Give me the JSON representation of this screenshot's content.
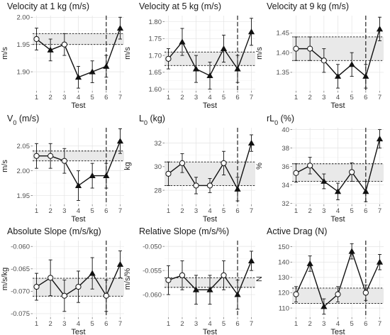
{
  "chart_data": [
    {
      "type": "line",
      "title": "Velocity at 1 kg (m/s)",
      "xlabel": "Test",
      "ylabel": "m/s",
      "x": [
        1,
        2,
        3,
        4,
        5,
        6,
        7
      ],
      "values": [
        1.96,
        1.94,
        1.95,
        1.89,
        1.9,
        1.91,
        1.98
      ],
      "errors": [
        0.02,
        0.02,
        0.02,
        0.02,
        0.02,
        0.02,
        0.02
      ],
      "markers": [
        "open-circle",
        "filled-triangle",
        "open-circle",
        "filled-triangle",
        "filled-triangle",
        "filled-triangle",
        "filled-triangle"
      ],
      "band": [
        1.95,
        1.97
      ],
      "vline_x": 6,
      "ylim": [
        1.865,
        2.003
      ],
      "yticks": [
        "1.90",
        "1.95",
        "2.00"
      ]
    },
    {
      "type": "line",
      "title": "Velocity at 5 kg (m/s)",
      "xlabel": "Test",
      "ylabel": "m/s",
      "x": [
        1,
        2,
        3,
        4,
        5,
        6,
        7
      ],
      "values": [
        1.69,
        1.74,
        1.66,
        1.64,
        1.72,
        1.66,
        1.77
      ],
      "errors": [
        0.03,
        0.04,
        0.04,
        0.04,
        0.04,
        0.04,
        0.04
      ],
      "markers": [
        "open-circle",
        "filled-triangle",
        "filled-triangle",
        "filled-triangle",
        "filled-triangle",
        "filled-triangle",
        "filled-triangle"
      ],
      "band": [
        1.67,
        1.71
      ],
      "vline_x": 6,
      "ylim": [
        1.595,
        1.818
      ],
      "yticks": [
        "1.60",
        "1.65",
        "1.70",
        "1.75",
        "1.80"
      ]
    },
    {
      "type": "line",
      "title": "Velocity at 9 kg (m/s)",
      "xlabel": "Test",
      "ylabel": "m/s",
      "x": [
        1,
        2,
        3,
        4,
        5,
        6,
        7
      ],
      "values": [
        1.41,
        1.41,
        1.38,
        1.34,
        1.37,
        1.34,
        1.46
      ],
      "errors": [
        0.03,
        0.03,
        0.03,
        0.03,
        0.03,
        0.03,
        0.03
      ],
      "markers": [
        "open-circle",
        "open-circle",
        "open-circle",
        "filled-triangle",
        "filled-triangle",
        "filled-triangle",
        "filled-triangle"
      ],
      "band": [
        1.38,
        1.44
      ],
      "vline_x": 6,
      "ylim": [
        1.303,
        1.494
      ],
      "yticks": [
        "1.35",
        "1.40",
        "1.45"
      ]
    },
    {
      "type": "line",
      "title": "V",
      "title_sub": "0",
      "title_rest": " (m/s)",
      "xlabel": "Test",
      "ylabel": "m/s",
      "x": [
        1,
        2,
        3,
        4,
        5,
        6,
        7
      ],
      "values": [
        2.03,
        2.03,
        2.02,
        1.97,
        1.99,
        1.99,
        2.06
      ],
      "errors": [
        0.025,
        0.025,
        0.025,
        0.03,
        0.025,
        0.025,
        0.025
      ],
      "markers": [
        "open-circle",
        "open-circle",
        "open-circle",
        "filled-triangle",
        "filled-triangle",
        "filled-triangle",
        "filled-triangle"
      ],
      "band": [
        2.02,
        2.04
      ],
      "vline_x": 6,
      "ylim": [
        1.932,
        2.087
      ],
      "yticks": [
        "1.95",
        "2.00",
        "2.05"
      ]
    },
    {
      "type": "line",
      "title": "L",
      "title_sub": "0",
      "title_rest": " (kg)",
      "xlabel": "Test",
      "ylabel": "kg",
      "x": [
        1,
        2,
        3,
        4,
        5,
        6,
        7
      ],
      "values": [
        29.4,
        30.3,
        28.4,
        28.4,
        30.3,
        28.1,
        32.0
      ],
      "errors": [
        1.0,
        0.8,
        0.7,
        0.6,
        1.0,
        1.0,
        0.7
      ],
      "markers": [
        "open-circle",
        "open-circle",
        "open-circle",
        "open-circle",
        "open-circle",
        "filled-triangle",
        "filled-triangle"
      ],
      "band": [
        28.4,
        30.4
      ],
      "vline_x": 6,
      "ylim": [
        26.8,
        33.3
      ],
      "yticks": [
        "28",
        "30",
        "32"
      ]
    },
    {
      "type": "line",
      "title": "rL",
      "title_sub": "0",
      "title_rest": " (%)",
      "xlabel": "Test",
      "ylabel": "%",
      "x": [
        1,
        2,
        3,
        4,
        5,
        6,
        7
      ],
      "values": [
        35.3,
        36.1,
        34.4,
        33.3,
        35.4,
        33.3,
        39.0
      ],
      "errors": [
        1.0,
        0.9,
        0.8,
        0.9,
        1.0,
        1.1,
        1.0
      ],
      "markers": [
        "open-circle",
        "open-circle",
        "filled-triangle",
        "filled-triangle",
        "open-circle",
        "filled-triangle",
        "filled-triangle"
      ],
      "band": [
        34.4,
        36.3
      ],
      "vline_x": 6,
      "ylim": [
        31.9,
        40.2
      ],
      "yticks": [
        "32",
        "34",
        "36",
        "38",
        "40"
      ]
    },
    {
      "type": "line",
      "title": "Absolute Slope (m/s/kg)",
      "xlabel": "Test",
      "ylabel": "m/s/kg",
      "x": [
        1,
        2,
        3,
        4,
        5,
        6,
        7
      ],
      "values": [
        -0.069,
        -0.067,
        -0.071,
        -0.069,
        -0.066,
        -0.071,
        -0.064
      ],
      "errors": [
        0.003,
        0.004,
        0.0035,
        0.0035,
        0.0035,
        0.0035,
        0.003
      ],
      "markers": [
        "open-circle",
        "open-circle",
        "open-circle",
        "open-circle",
        "filled-triangle",
        "open-circle",
        "filled-triangle"
      ],
      "band": [
        -0.0711,
        -0.0671
      ],
      "vline_x": 6,
      "ylim": [
        -0.0758,
        -0.0587
      ],
      "yticks": [
        "-0.075",
        "-0.070",
        "-0.065",
        "-0.060"
      ]
    },
    {
      "type": "line",
      "title": "Relative Slope (m/s/%)",
      "xlabel": "Test",
      "ylabel": "m/s/%",
      "x": [
        1,
        2,
        3,
        4,
        5,
        6,
        7
      ],
      "values": [
        -0.057,
        -0.056,
        -0.059,
        -0.059,
        -0.056,
        -0.06,
        -0.053
      ],
      "errors": [
        0.003,
        0.003,
        0.003,
        0.003,
        0.003,
        0.003,
        0.002
      ],
      "markers": [
        "open-circle",
        "open-circle",
        "filled-triangle",
        "filled-triangle",
        "open-circle",
        "filled-triangle",
        "filled-triangle"
      ],
      "band": [
        -0.0585,
        -0.0565
      ],
      "vline_x": 6,
      "ylim": [
        -0.0647,
        -0.0488
      ],
      "yticks": [
        "-0.060",
        "-0.055",
        "-0.050"
      ]
    },
    {
      "type": "line",
      "title": "Active Drag (N)",
      "xlabel": "Test",
      "ylabel": "N",
      "x": [
        1,
        2,
        3,
        4,
        5,
        6,
        7
      ],
      "values": [
        119,
        139,
        111,
        119,
        147,
        120,
        140
      ],
      "errors": [
        5,
        5,
        5,
        5,
        5,
        5,
        5
      ],
      "markers": [
        "open-circle",
        "filled-triangle",
        "filled-triangle",
        "open-circle",
        "filled-triangle",
        "open-circle",
        "filled-triangle"
      ],
      "band": [
        113,
        123
      ],
      "vline_x": 6,
      "ylim": [
        104,
        154
      ],
      "yticks": [
        "110",
        "120",
        "130",
        "140",
        "150"
      ]
    }
  ],
  "style": {
    "line_color": "#111111",
    "band_color": "#e9e9e9",
    "grid_color": "#e3e3e3",
    "tick_text_color": "#4d4d4d"
  }
}
